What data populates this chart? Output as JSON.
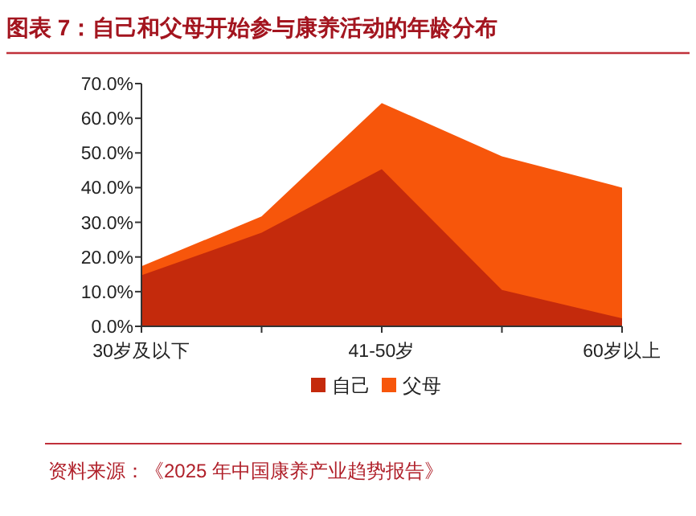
{
  "chart_data": {
    "type": "area",
    "title": "图表 7：自己和父母开始参与康养活动的年龄分布",
    "categories": [
      "30岁及以下",
      null,
      "41-50岁",
      null,
      "60岁以上"
    ],
    "series": [
      {
        "name": "父母",
        "color": "#f7560b",
        "values": [
          17.3,
          31.7,
          64.4,
          49,
          40
        ]
      },
      {
        "name": "自己",
        "color": "#c42a0c",
        "values": [
          14.7,
          27,
          45.3,
          10.5,
          2.3
        ]
      }
    ],
    "ylim": [
      0,
      70
    ],
    "yticks": [
      {
        "value": 0,
        "label": "0.0%"
      },
      {
        "value": 10,
        "label": "10.0%"
      },
      {
        "value": 20,
        "label": "20.0%"
      },
      {
        "value": 30,
        "label": "30.0%"
      },
      {
        "value": 40,
        "label": "40.0%"
      },
      {
        "value": 50,
        "label": "50.0%"
      },
      {
        "value": 60,
        "label": "60.0%"
      },
      {
        "value": 70,
        "label": "70.0%"
      }
    ],
    "legend": "bottom",
    "annotations": [
      "资料来源：《2025 年中国康养产业趋势报告》"
    ]
  }
}
